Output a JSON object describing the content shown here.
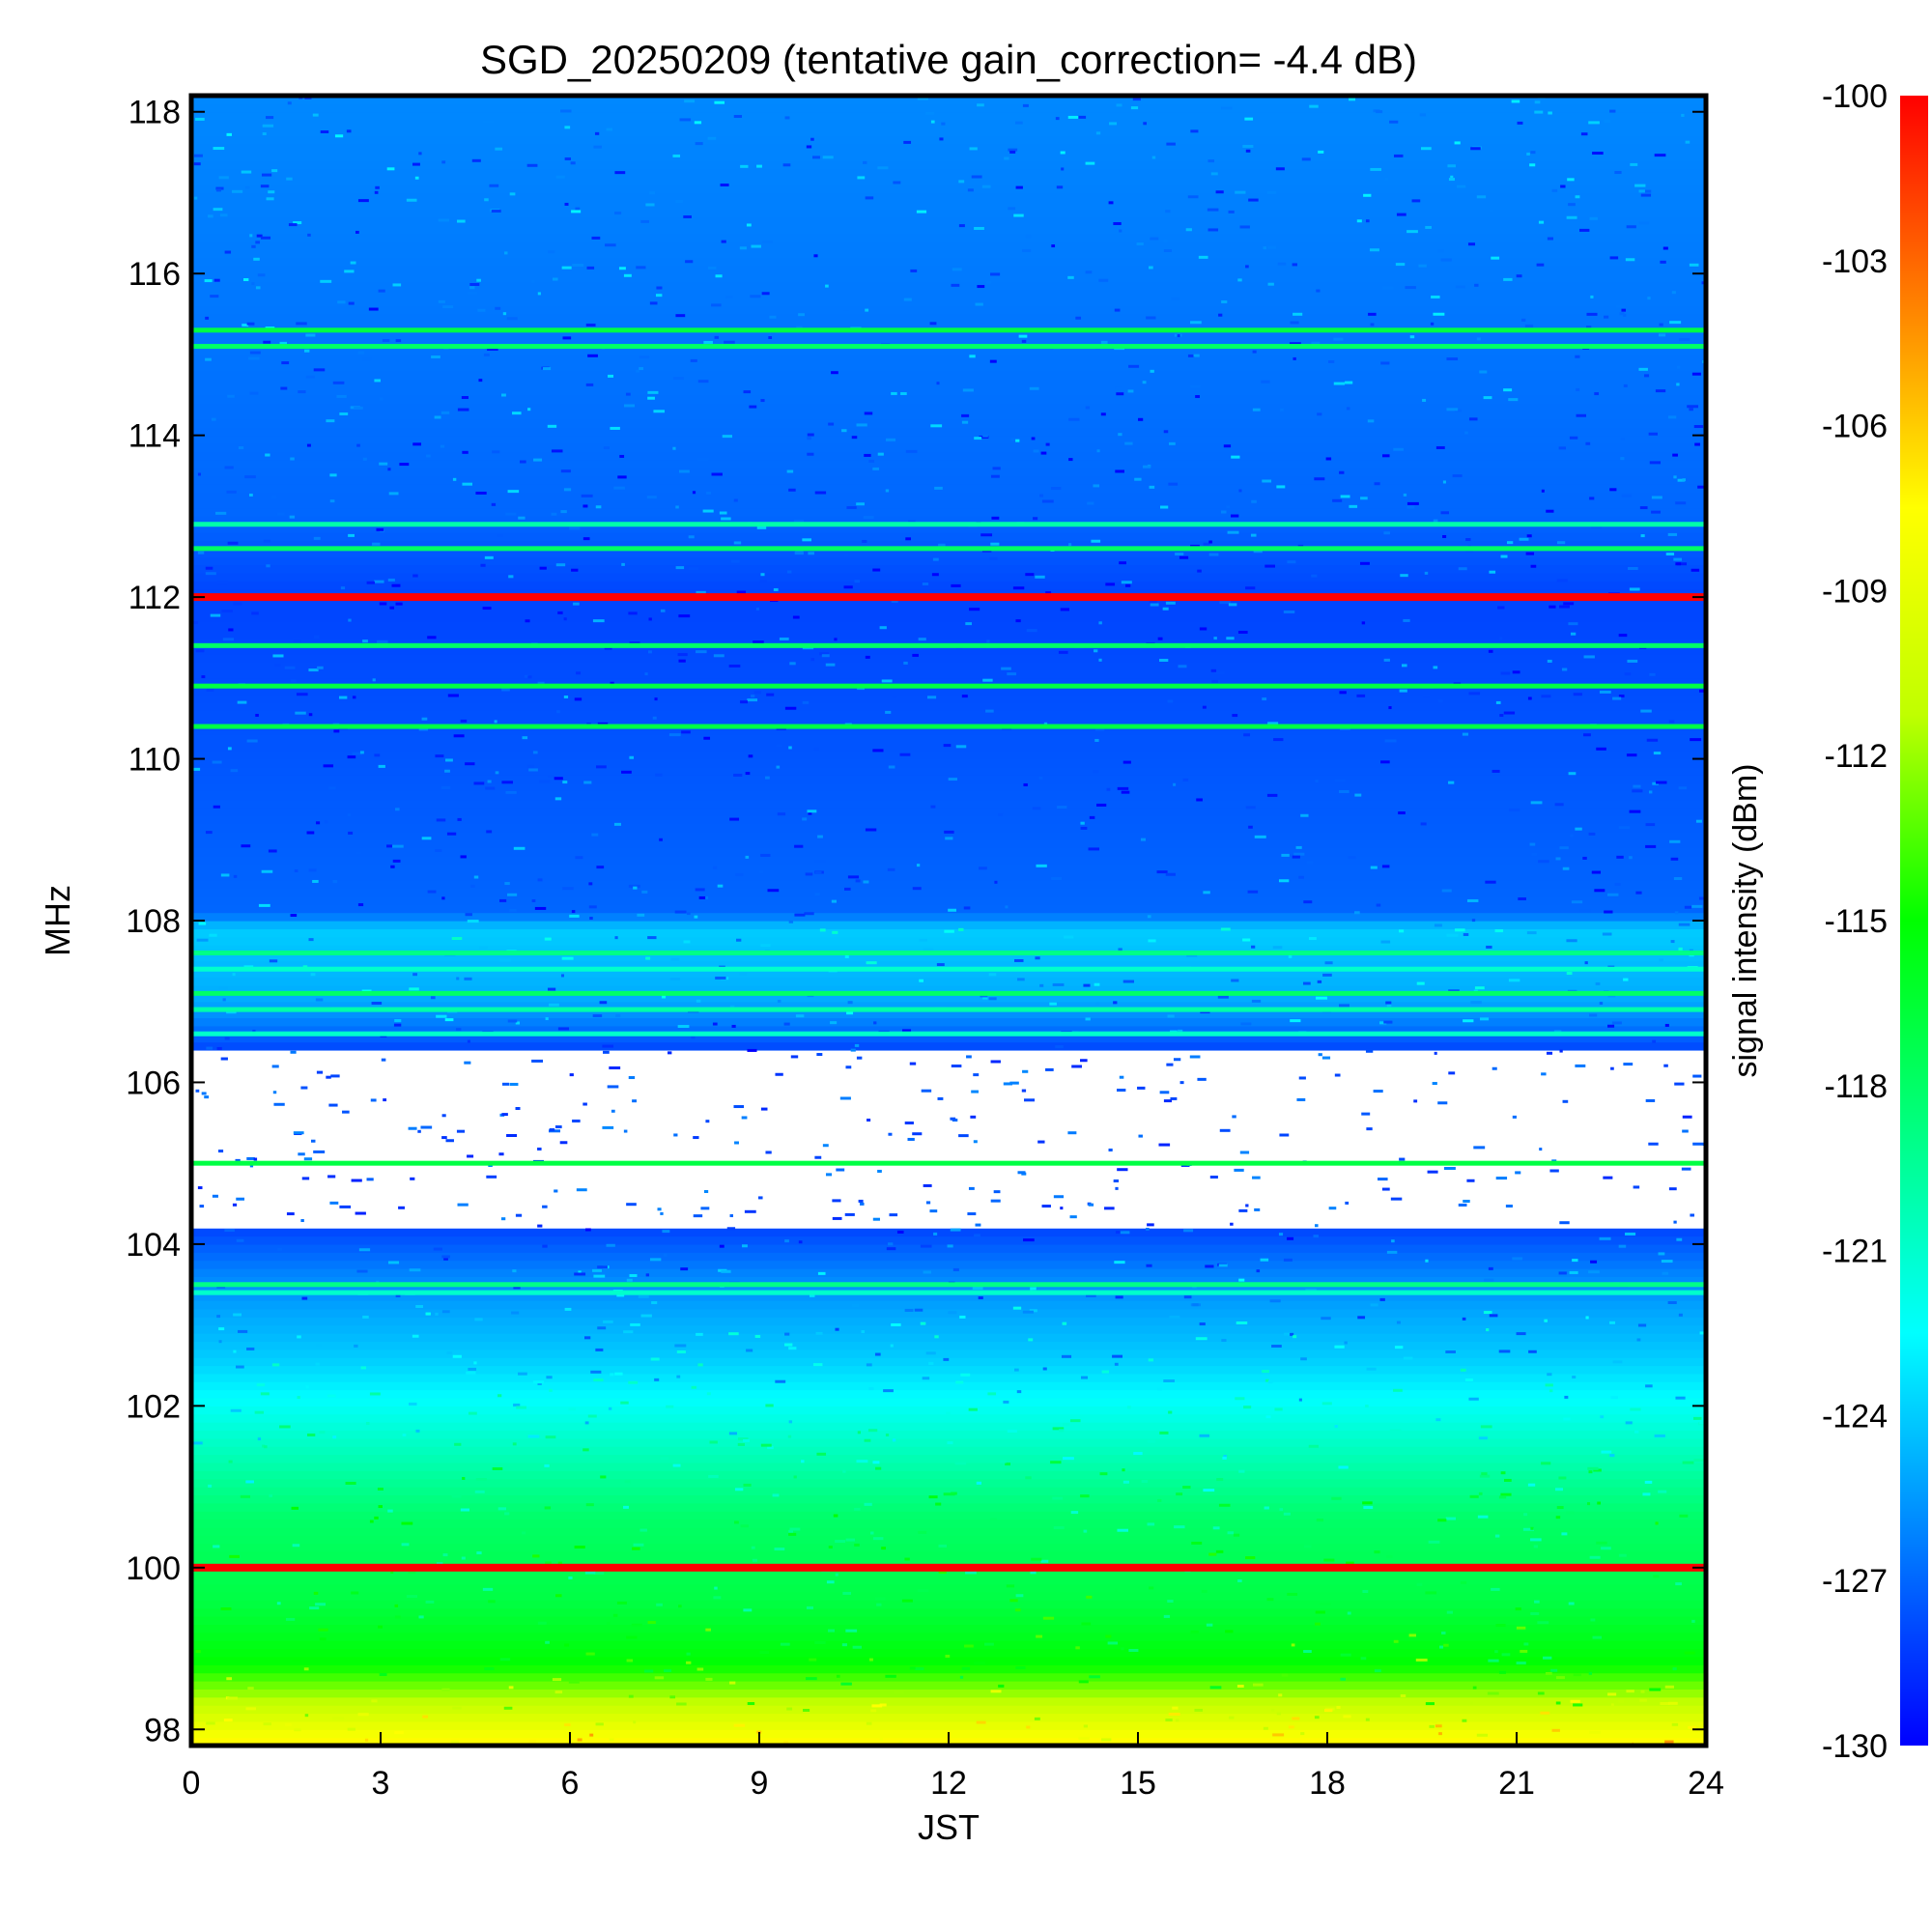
{
  "chart_data": {
    "type": "heatmap",
    "title": "SGD_20250209 (tentative gain_correction= -4.4 dB)",
    "xlabel": "JST",
    "ylabel": "MHz",
    "colorbar_label": "signal intensity (dBm)",
    "xlim": [
      0,
      24
    ],
    "ylim": [
      97.8,
      118.2
    ],
    "clim": [
      -130,
      -100
    ],
    "x_ticks": [
      0,
      3,
      6,
      9,
      12,
      15,
      18,
      21,
      24
    ],
    "y_ticks": [
      98,
      100,
      102,
      104,
      106,
      108,
      110,
      112,
      114,
      116,
      118
    ],
    "colorbar_ticks": [
      -100,
      -103,
      -106,
      -109,
      -112,
      -115,
      -118,
      -121,
      -124,
      -127,
      -130
    ],
    "colormap": [
      "#0000ff",
      "#0080ff",
      "#00ffff",
      "#00ff80",
      "#00ff00",
      "#c0ff00",
      "#ffff00",
      "#ff8000",
      "#ff0000"
    ],
    "background_profile": [
      {
        "freq": 97.8,
        "dbm": -107
      },
      {
        "freq": 98.2,
        "dbm": -110
      },
      {
        "freq": 98.8,
        "dbm": -115
      },
      {
        "freq": 99.6,
        "dbm": -117
      },
      {
        "freq": 100.6,
        "dbm": -118
      },
      {
        "freq": 101.6,
        "dbm": -121
      },
      {
        "freq": 102.6,
        "dbm": -124
      },
      {
        "freq": 103.6,
        "dbm": -126
      },
      {
        "freq": 104.2,
        "dbm": -128
      },
      {
        "freq": 106.4,
        "dbm": -128
      },
      {
        "freq": 107.0,
        "dbm": -125
      },
      {
        "freq": 107.9,
        "dbm": -124
      },
      {
        "freq": 108.1,
        "dbm": -127
      },
      {
        "freq": 112.0,
        "dbm": -128
      },
      {
        "freq": 113.0,
        "dbm": -127
      },
      {
        "freq": 118.2,
        "dbm": -126
      }
    ],
    "saturated_bands": [
      {
        "freq_min": 104.2,
        "freq_max": 106.4,
        "color": "#ffffff"
      }
    ],
    "station_lines": [
      {
        "freq": 112.0,
        "dbm": -100
      },
      {
        "freq": 100.0,
        "dbm": -100
      },
      {
        "freq": 115.3,
        "dbm": -117
      },
      {
        "freq": 115.1,
        "dbm": -118
      },
      {
        "freq": 112.9,
        "dbm": -120
      },
      {
        "freq": 112.6,
        "dbm": -118
      },
      {
        "freq": 111.4,
        "dbm": -118
      },
      {
        "freq": 110.9,
        "dbm": -117
      },
      {
        "freq": 110.4,
        "dbm": -117
      },
      {
        "freq": 107.6,
        "dbm": -119
      },
      {
        "freq": 107.4,
        "dbm": -121
      },
      {
        "freq": 107.1,
        "dbm": -118
      },
      {
        "freq": 106.9,
        "dbm": -120
      },
      {
        "freq": 106.6,
        "dbm": -121
      },
      {
        "freq": 105.0,
        "dbm": -117
      },
      {
        "freq": 103.5,
        "dbm": -119
      },
      {
        "freq": 103.4,
        "dbm": -121
      }
    ],
    "grid": false,
    "legend": "none"
  }
}
